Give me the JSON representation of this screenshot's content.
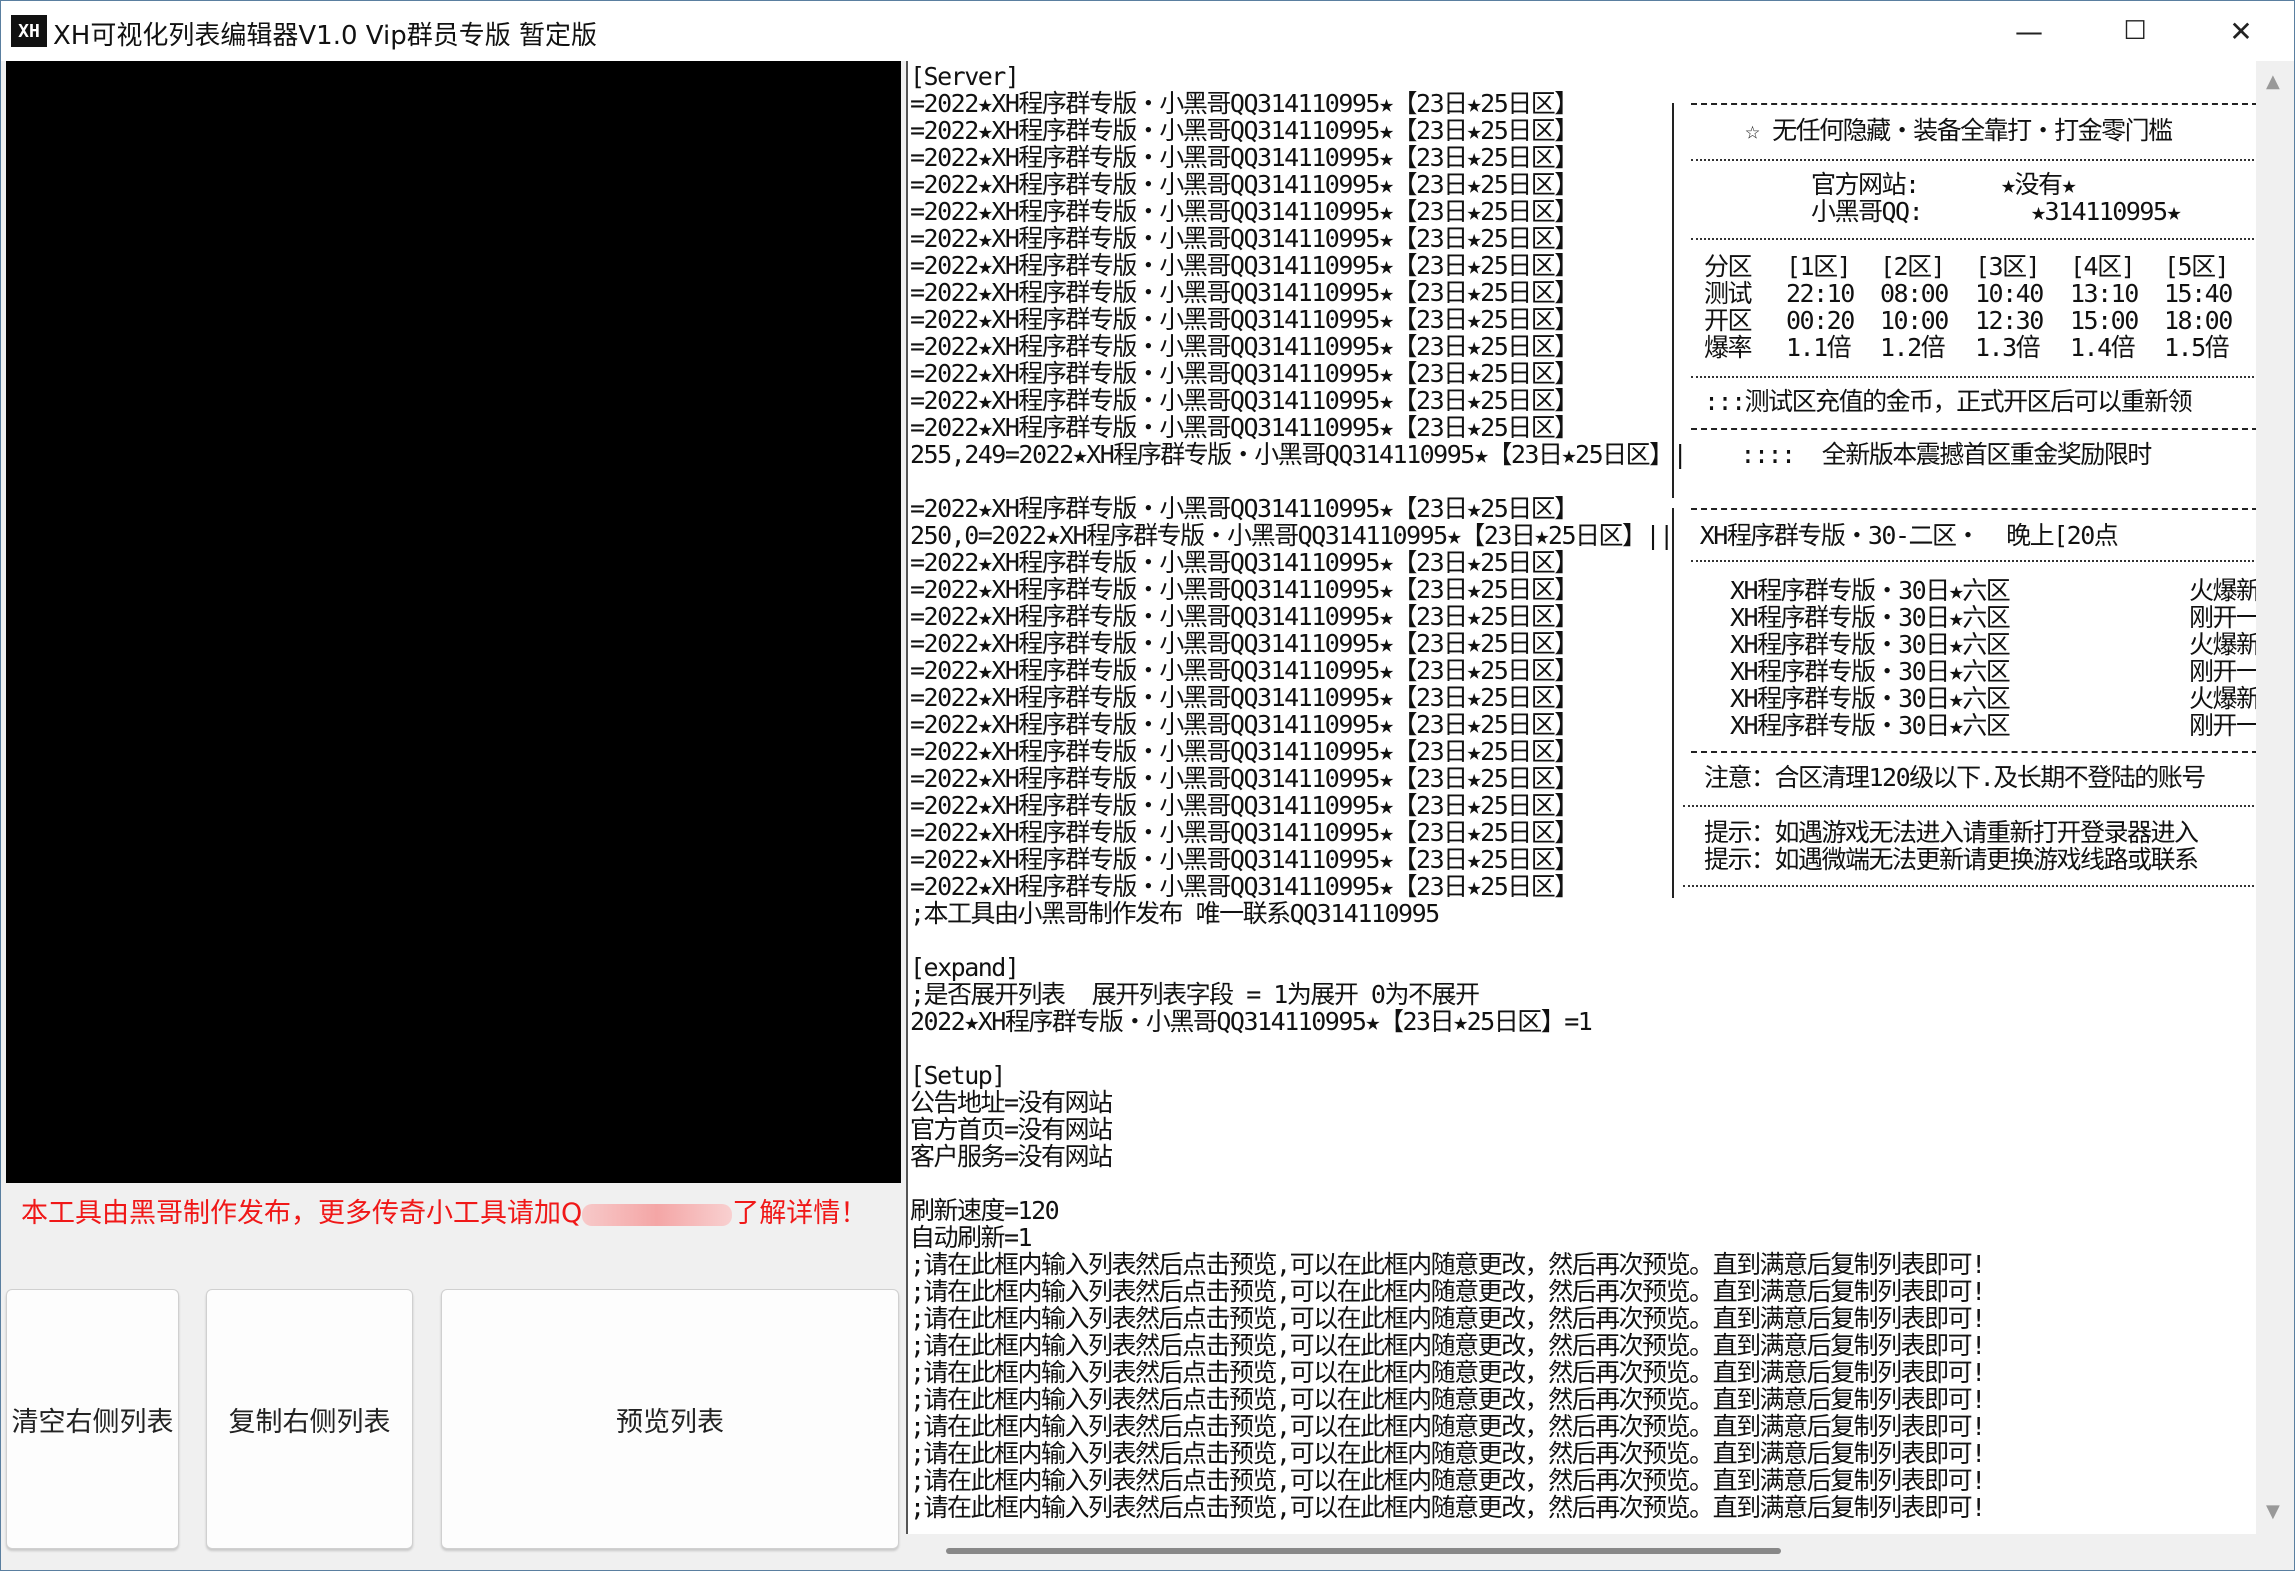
{
  "window": {
    "title": "XH可视化列表编辑器V1.0 Vip群员专版 暂定版",
    "icon_text": "XH",
    "minimize": "—",
    "maximize": "☐",
    "close": "✕"
  },
  "left": {
    "notice_before": "本工具由黑哥制作发布，更多传奇小工具请加Q",
    "notice_after": "了解详情！",
    "buttons": {
      "clear": "清空右侧列表",
      "copy": "复制右侧列表",
      "preview": "预览列表"
    }
  },
  "editor": {
    "lines": [
      "[Server]",
      "=2022★XH程序群专版・小黑哥QQ314110995★【23日★25日区】",
      "=2022★XH程序群专版・小黑哥QQ314110995★【23日★25日区】",
      "=2022★XH程序群专版・小黑哥QQ314110995★【23日★25日区】",
      "=2022★XH程序群专版・小黑哥QQ314110995★【23日★25日区】",
      "=2022★XH程序群专版・小黑哥QQ314110995★【23日★25日区】",
      "=2022★XH程序群专版・小黑哥QQ314110995★【23日★25日区】",
      "=2022★XH程序群专版・小黑哥QQ314110995★【23日★25日区】",
      "=2022★XH程序群专版・小黑哥QQ314110995★【23日★25日区】",
      "=2022★XH程序群专版・小黑哥QQ314110995★【23日★25日区】",
      "=2022★XH程序群专版・小黑哥QQ314110995★【23日★25日区】",
      "=2022★XH程序群专版・小黑哥QQ314110995★【23日★25日区】",
      "=2022★XH程序群专版・小黑哥QQ314110995★【23日★25日区】",
      "=2022★XH程序群专版・小黑哥QQ314110995★【23日★25日区】",
      "255,249=2022★XH程序群专版・小黑哥QQ314110995★【23日★25日区】|    ::::  全新版本震撼首区重金奖励限时",
      "",
      "=2022★XH程序群专版・小黑哥QQ314110995★【23日★25日区】",
      "250,0=2022★XH程序群专版・小黑哥QQ314110995★【23日★25日区】||  XH程序群专版・30-二区・  晚上[20点",
      "=2022★XH程序群专版・小黑哥QQ314110995★【23日★25日区】",
      "=2022★XH程序群专版・小黑哥QQ314110995★【23日★25日区】",
      "=2022★XH程序群专版・小黑哥QQ314110995★【23日★25日区】",
      "=2022★XH程序群专版・小黑哥QQ314110995★【23日★25日区】",
      "=2022★XH程序群专版・小黑哥QQ314110995★【23日★25日区】",
      "=2022★XH程序群专版・小黑哥QQ314110995★【23日★25日区】",
      "=2022★XH程序群专版・小黑哥QQ314110995★【23日★25日区】",
      "=2022★XH程序群专版・小黑哥QQ314110995★【23日★25日区】",
      "=2022★XH程序群专版・小黑哥QQ314110995★【23日★25日区】",
      "=2022★XH程序群专版・小黑哥QQ314110995★【23日★25日区】",
      "=2022★XH程序群专版・小黑哥QQ314110995★【23日★25日区】",
      "=2022★XH程序群专版・小黑哥QQ314110995★【23日★25日区】",
      "=2022★XH程序群专版・小黑哥QQ314110995★【23日★25日区】",
      ";本工具由小黑哥制作发布 唯一联系QQ314110995",
      "",
      "[expand]",
      ";是否展开列表  展开列表字段 = 1为展开 0为不展开",
      "2022★XH程序群专版・小黑哥QQ314110995★【23日★25日区】=1",
      "",
      "[Setup]",
      "公告地址=没有网站",
      "官方首页=没有网站",
      "客户服务=没有网站",
      "",
      "刷新速度=120",
      "自动刷新=1",
      ";请在此框内输入列表然后点击预览,可以在此框内随意更改，然后再次预览。直到满意后复制列表即可!",
      ";请在此框内输入列表然后点击预览,可以在此框内随意更改，然后再次预览。直到满意后复制列表即可!",
      ";请在此框内输入列表然后点击预览,可以在此框内随意更改，然后再次预览。直到满意后复制列表即可!",
      ";请在此框内输入列表然后点击预览,可以在此框内随意更改，然后再次预览。直到满意后复制列表即可!",
      ";请在此框内输入列表然后点击预览,可以在此框内随意更改，然后再次预览。直到满意后复制列表即可!",
      ";请在此框内输入列表然后点击预览,可以在此框内随意更改，然后再次预览。直到满意后复制列表即可!",
      ";请在此框内输入列表然后点击预览,可以在此框内随意更改，然后再次预览。直到满意后复制列表即可!",
      ";请在此框内输入列表然后点击预览,可以在此框内随意更改，然后再次预览。直到满意后复制列表即可!",
      ";请在此框内输入列表然后点击预览,可以在此框内随意更改，然后再次预览。直到满意后复制列表即可!",
      ";请在此框内输入列表然后点击预览,可以在此框内随意更改，然后再次预览。直到满意后复制列表即可!"
    ]
  },
  "box1": {
    "slogan": "☆ 无任何隐藏・装备全靠打・打金零门槛",
    "site_label": "官方网站:",
    "site_value": "★没有★",
    "qq_label": "小黑哥QQ:",
    "qq_value": "★314110995★",
    "table": [
      [
        "分区",
        "[1区]",
        "[2区]",
        "[3区]",
        "[4区]",
        "[5区]"
      ],
      [
        "测试",
        "22:10",
        "08:00",
        "10:40",
        "13:10",
        "15:40"
      ],
      [
        "开区",
        "00:20",
        "10:00",
        "12:30",
        "15:00",
        "18:00"
      ],
      [
        "爆率",
        "1.1倍",
        "1.2倍",
        "1.3倍",
        "1.4倍",
        "1.5倍"
      ]
    ],
    "note": ":::测试区充值的金币，正式开区后可以重新领"
  },
  "box2": {
    "rows": [
      [
        "XH程序群专版・30日★六区",
        "火爆新"
      ],
      [
        "XH程序群专版・30日★六区",
        "刚开一"
      ],
      [
        "XH程序群专版・30日★六区",
        "火爆新"
      ],
      [
        "XH程序群专版・30日★六区",
        "刚开一"
      ],
      [
        "XH程序群专版・30日★六区",
        "火爆新"
      ],
      [
        "XH程序群专版・30日★六区",
        "刚开一"
      ]
    ],
    "notice": "注意：合区清理120级以下.及长期不登陆的账号",
    "tip1": "提示：如遇游戏无法进入请重新打开登录器进入",
    "tip2": "提示：如遇微端无法更新请更换游戏线路或联系"
  },
  "scroll": {
    "up": "▲",
    "down": "▼"
  }
}
